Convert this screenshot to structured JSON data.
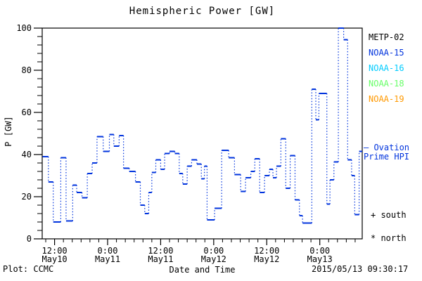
{
  "chart_data": {
    "type": "line",
    "subtype": "step-dotted",
    "title": "Hemispheric Power [GW]",
    "xlabel": "Date and Time",
    "ylabel": "P [GW]",
    "ylim": [
      0,
      100
    ],
    "yticks": [
      0,
      20,
      40,
      60,
      80,
      100
    ],
    "y_minor_step": 4,
    "xlim_hours": [
      9.2,
      81.6
    ],
    "x_minor_step_hours": 2,
    "x_major_ticks": [
      {
        "hour": 12,
        "time": "12:00",
        "date": "May10"
      },
      {
        "hour": 24,
        "time": "0:00",
        "date": "May11"
      },
      {
        "hour": 36,
        "time": "12:00",
        "date": "May11"
      },
      {
        "hour": 48,
        "time": "0:00",
        "date": "May12"
      },
      {
        "hour": 60,
        "time": "12:00",
        "date": "May12"
      },
      {
        "hour": 72,
        "time": "0:00",
        "date": "May13"
      }
    ],
    "legend": [
      {
        "label": "METP-02",
        "color": "#000000"
      },
      {
        "label": "NOAA-15",
        "color": "#0033dd"
      },
      {
        "label": "NOAA-16",
        "color": "#00ccff"
      },
      {
        "label": "NOAA-18",
        "color": "#66ff66"
      },
      {
        "label": "NOAA-19",
        "color": "#ff9900"
      }
    ],
    "series": [
      {
        "name": "Ovation Prime HPI",
        "color": "#0033dd",
        "units": "GW",
        "segments_hour_start_end_value": [
          [
            9.3,
            10.6,
            39
          ],
          [
            10.6,
            11.7,
            27
          ],
          [
            11.7,
            13.4,
            8
          ],
          [
            13.4,
            14.6,
            38.5
          ],
          [
            14.6,
            16.1,
            8.5
          ],
          [
            16.1,
            17.0,
            25.5
          ],
          [
            17.0,
            18.2,
            22
          ],
          [
            18.2,
            19.4,
            19.5
          ],
          [
            19.4,
            20.5,
            31
          ],
          [
            20.5,
            21.6,
            36
          ],
          [
            21.6,
            23.0,
            48.5
          ],
          [
            23.0,
            24.4,
            41.5
          ],
          [
            24.4,
            25.4,
            49.5
          ],
          [
            25.4,
            26.6,
            44
          ],
          [
            26.6,
            27.6,
            49
          ],
          [
            27.6,
            28.9,
            33.5
          ],
          [
            28.9,
            30.3,
            32
          ],
          [
            30.3,
            31.4,
            27
          ],
          [
            31.4,
            32.4,
            16
          ],
          [
            32.4,
            33.3,
            12
          ],
          [
            33.3,
            34.0,
            22
          ],
          [
            34.0,
            34.9,
            31.5
          ],
          [
            34.9,
            36.0,
            37.5
          ],
          [
            36.0,
            36.9,
            33
          ],
          [
            36.9,
            38.0,
            40.5
          ],
          [
            38.0,
            39.2,
            41.5
          ],
          [
            39.2,
            40.2,
            40.5
          ],
          [
            40.2,
            41.0,
            31
          ],
          [
            41.0,
            42.0,
            26
          ],
          [
            42.0,
            43.0,
            34.5
          ],
          [
            43.0,
            44.2,
            37.5
          ],
          [
            44.2,
            45.2,
            35.5
          ],
          [
            45.2,
            45.9,
            28.5
          ],
          [
            45.9,
            46.5,
            34.5
          ],
          [
            46.5,
            48.2,
            9
          ],
          [
            48.2,
            49.8,
            14.5
          ],
          [
            49.8,
            51.4,
            42
          ],
          [
            51.4,
            52.7,
            38.5
          ],
          [
            52.7,
            54.1,
            30.5
          ],
          [
            54.1,
            55.2,
            22.5
          ],
          [
            55.2,
            56.4,
            29
          ],
          [
            56.4,
            57.3,
            32
          ],
          [
            57.3,
            58.4,
            38
          ],
          [
            58.4,
            59.5,
            22
          ],
          [
            59.5,
            60.6,
            30
          ],
          [
            60.6,
            61.4,
            33
          ],
          [
            61.4,
            62.2,
            29
          ],
          [
            62.2,
            63.2,
            34.5
          ],
          [
            63.2,
            64.3,
            47.5
          ],
          [
            64.3,
            65.3,
            24
          ],
          [
            65.3,
            66.4,
            39.5
          ],
          [
            66.4,
            67.4,
            18.5
          ],
          [
            67.4,
            68.1,
            11
          ],
          [
            68.1,
            70.2,
            7.5
          ],
          [
            70.2,
            71.1,
            71
          ],
          [
            71.1,
            71.8,
            56.5
          ],
          [
            71.8,
            73.6,
            69
          ],
          [
            73.6,
            74.3,
            16.5
          ],
          [
            74.3,
            75.2,
            28
          ],
          [
            75.2,
            76.2,
            36.5
          ],
          [
            76.2,
            77.4,
            100
          ],
          [
            77.4,
            78.3,
            94.5
          ],
          [
            78.3,
            79.2,
            37.5
          ],
          [
            79.2,
            79.9,
            30
          ],
          [
            79.9,
            80.9,
            11.5
          ],
          [
            80.9,
            81.6,
            41.5
          ]
        ]
      }
    ],
    "grid": false,
    "legend_position": "right-outside"
  },
  "annotations": {
    "ovation_line1": "— Ovation",
    "ovation_line2": "Prime HPI",
    "south": "+ south",
    "north": "* north"
  },
  "footer": {
    "plot_credit": "Plot: CCMC",
    "timestamp": "2015/05/13 09:30:17"
  }
}
